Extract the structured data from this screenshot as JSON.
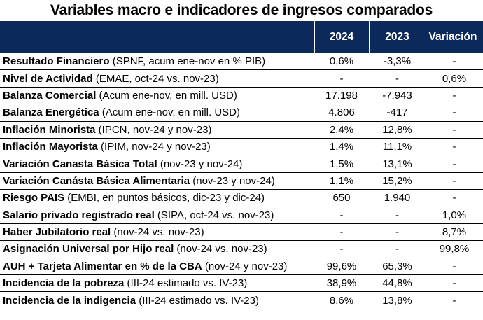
{
  "title": "Variables macro e indicadores de ingresos comparados",
  "headers": [
    "",
    "2024",
    "2023",
    "Variación"
  ],
  "rows": [
    {
      "bold": "Resultado Financiero",
      "rest": " (SPNF, acum ene-nov en % PIB)",
      "v2024": "0,6%",
      "v2023": "-3,3%",
      "var": "-"
    },
    {
      "bold": "Nivel de Actividad",
      "rest": " (EMAE, oct-24 vs. nov-23)",
      "v2024": "-",
      "v2023": "-",
      "var": "0,6%"
    },
    {
      "bold": "Balanza Comercial",
      "rest": " (Acum ene-nov, en mill. USD)",
      "v2024": "17.198",
      "v2023": "-7.943",
      "var": "-"
    },
    {
      "bold": "Balanza Energética",
      "rest": " (Acum ene-nov, en mill. USD)",
      "v2024": "4.806",
      "v2023": "-417",
      "var": "-"
    },
    {
      "bold": "Inflación Minorista",
      "rest": " (IPCN, nov-24 y nov-23)",
      "v2024": "2,4%",
      "v2023": "12,8%",
      "var": "-"
    },
    {
      "bold": "Inflación Mayorista",
      "rest": " (IPIM, nov-24 y nov-23)",
      "v2024": "1,4%",
      "v2023": "11,1%",
      "var": "-"
    },
    {
      "bold": "Variación Canasta Básica Total",
      "rest": " (nov-23 y nov-24)",
      "v2024": "1,5%",
      "v2023": "13,1%",
      "var": "-"
    },
    {
      "bold": "Variación Canásta Básica Alimentaria",
      "rest": " (nov-23 y nov-24)",
      "v2024": "1,1%",
      "v2023": "15,2%",
      "var": "-"
    },
    {
      "bold": "Riesgo PAIS",
      "rest": " (EMBI, en puntos básicos, dic-23 y dic-24)",
      "v2024": "650",
      "v2023": "1.940",
      "var": "-"
    },
    {
      "bold": "Salario privado registrado real",
      "rest": " (SIPA, oct-24 vs. nov-23)",
      "v2024": "-",
      "v2023": "-",
      "var": "1,0%"
    },
    {
      "bold": "Haber Jubilatorio real",
      "rest": " (nov-24 vs. nov-23)",
      "v2024": "-",
      "v2023": "-",
      "var": "8,7%"
    },
    {
      "bold": "Asignación Universal por Hijo real",
      "rest": " (nov-24 vs. nov-23)",
      "v2024": "-",
      "v2023": "-",
      "var": "99,8%"
    },
    {
      "bold": "AUH + Tarjeta Alimentar en % de la CBA",
      "rest": " (nov-24 y nov-23)",
      "v2024": "99,6%",
      "v2023": "65,3%",
      "var": "-"
    },
    {
      "bold": "Incidencia de la pobreza",
      "rest": " (III-24 estimado vs. IV-23)",
      "v2024": "38,9%",
      "v2023": "44,8%",
      "var": "-"
    },
    {
      "bold": "Incidencia de la indigencia",
      "rest": " (III-24 estimado vs. IV-23)",
      "v2024": "8,6%",
      "v2023": "13,8%",
      "var": "-"
    }
  ],
  "colors": {
    "header_bg": "#0b2a5b",
    "header_text": "#ffffff"
  }
}
